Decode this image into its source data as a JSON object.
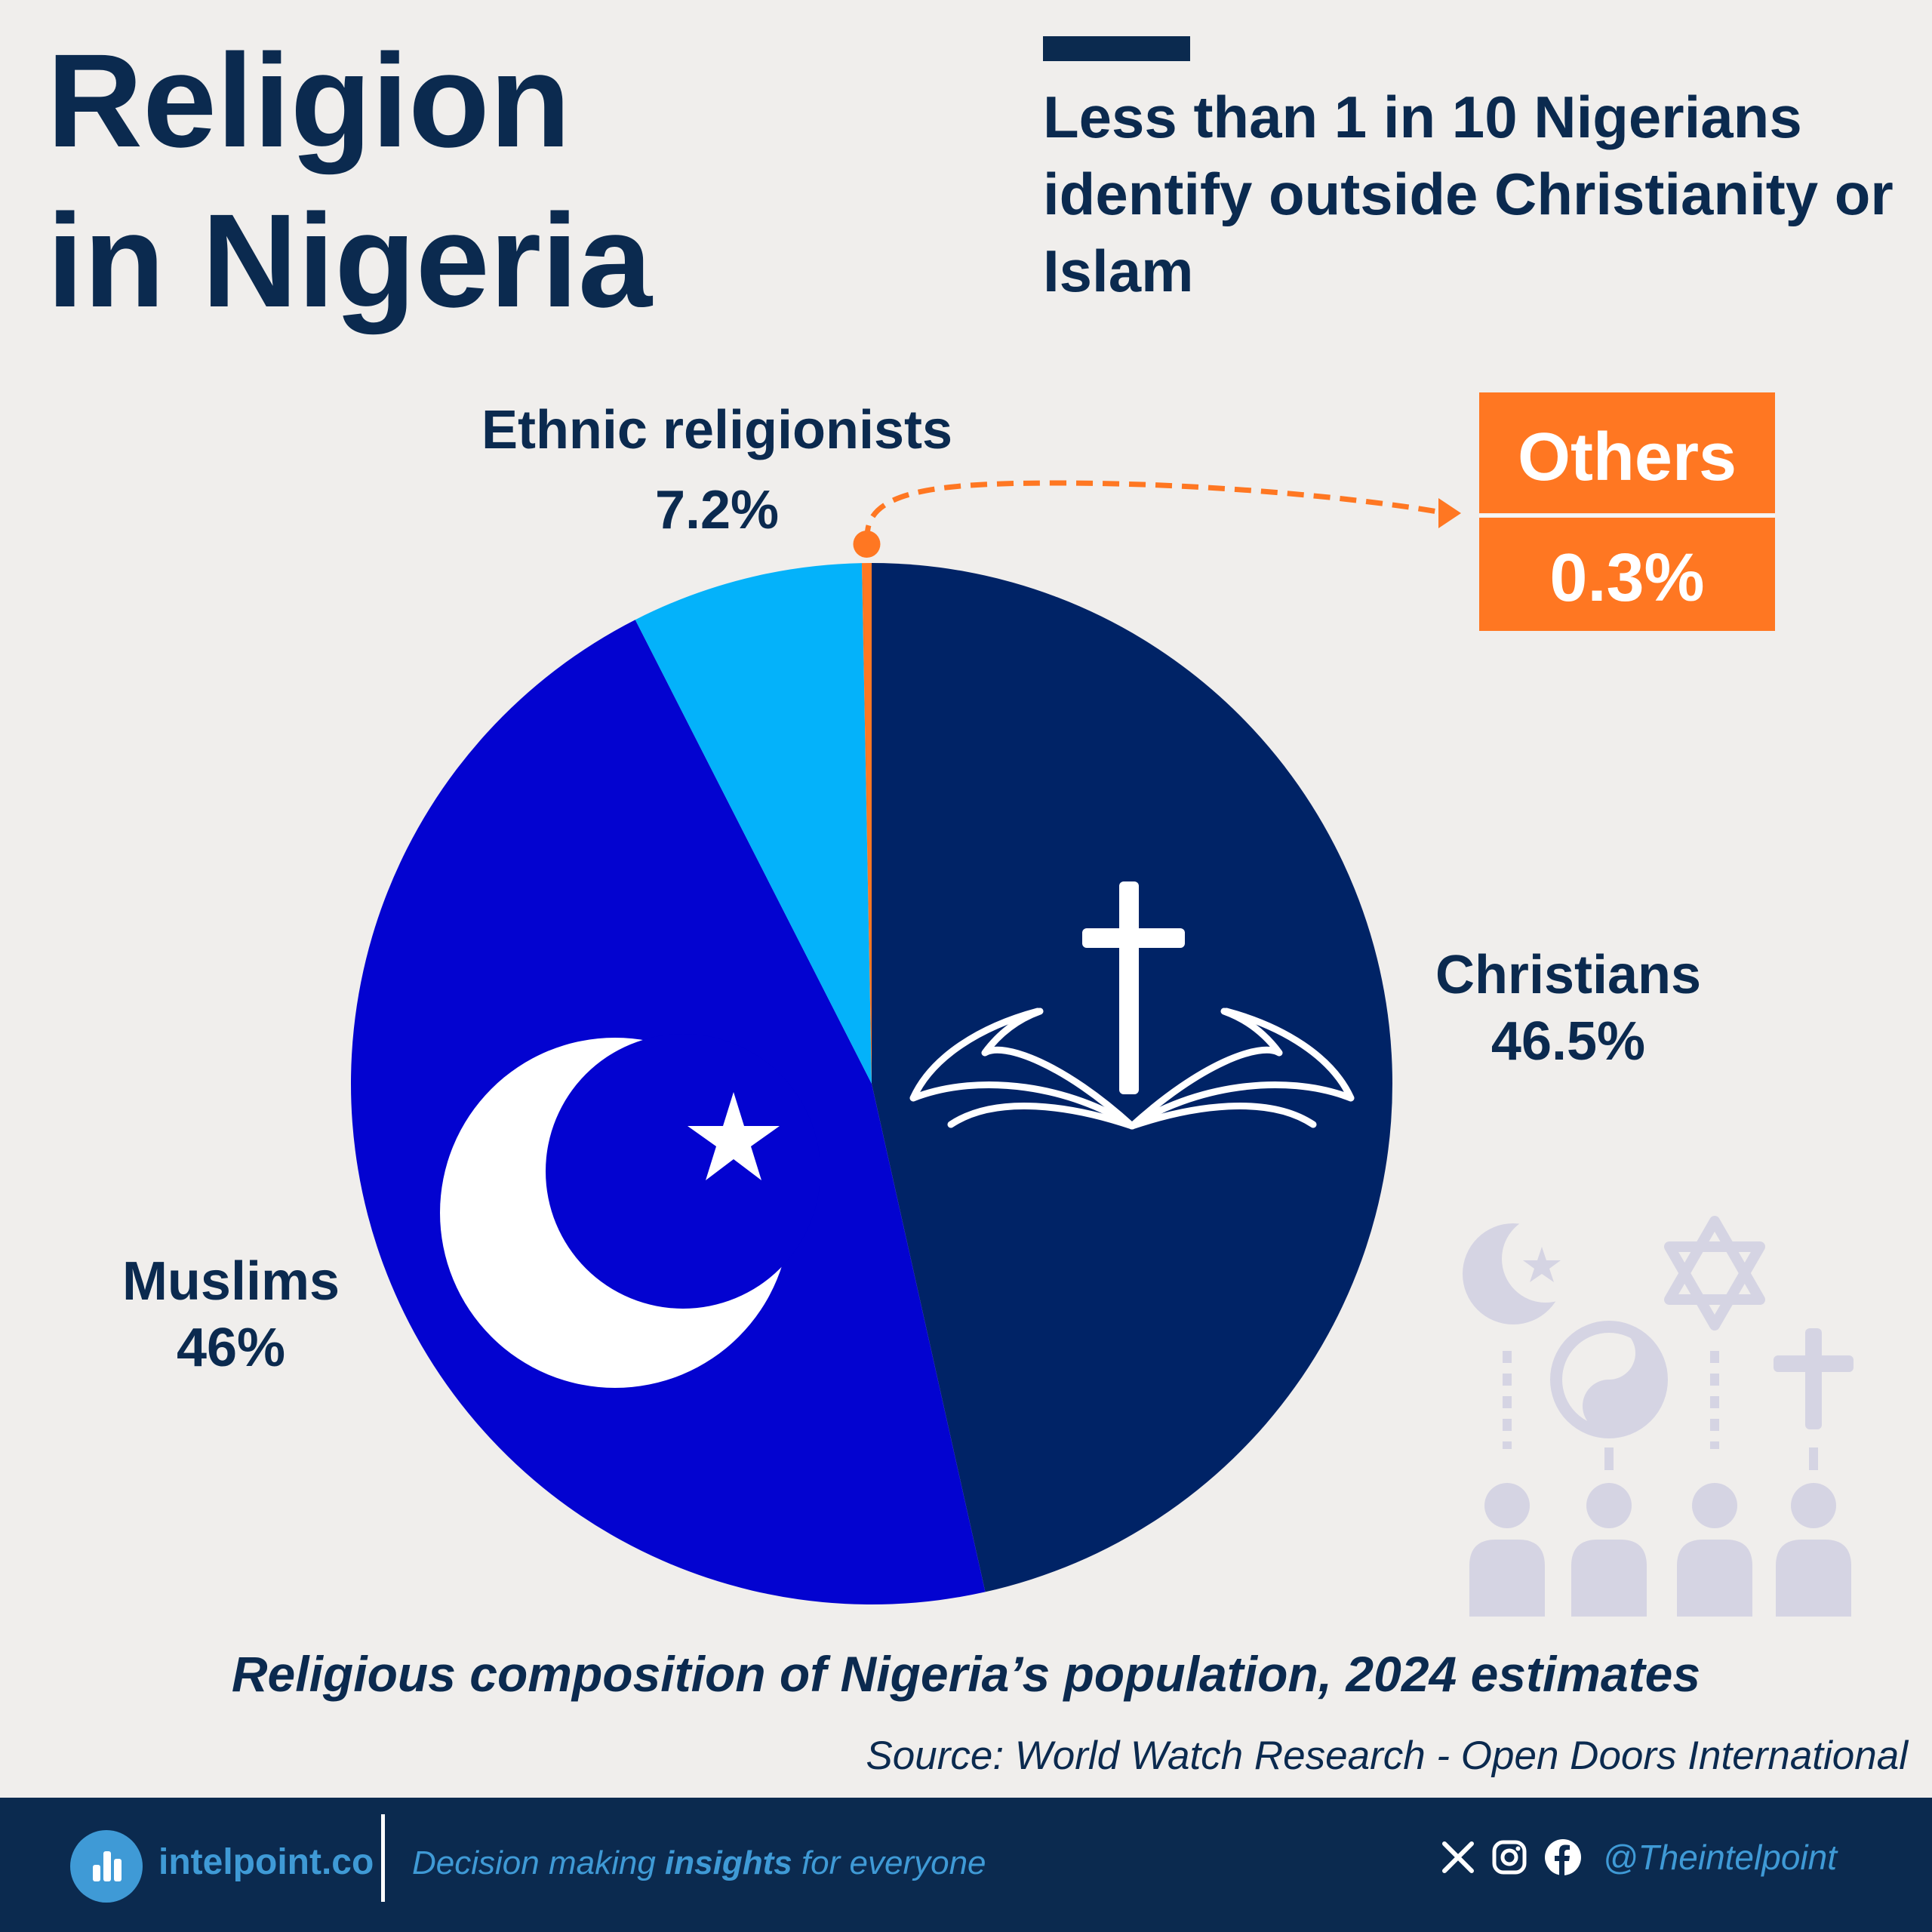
{
  "title_line1": "Religion",
  "title_line2": "in Nigeria",
  "subtitle": "Less than 1 in 10 Nigerians identify outside Christianity or Islam",
  "caption": "Religious composition of Nigeria’s population, 2024 estimates",
  "source": "Source: World Watch Research - Open Doors International",
  "colors": {
    "navy": "#0b2a4f",
    "christians": "#002366",
    "muslims": "#0303d0",
    "ethnic": "#04b2fa",
    "others": "#ff7722",
    "background": "#f0eeec",
    "watermark": "#d5d4e3"
  },
  "chart_data": {
    "type": "pie",
    "start": "12 o'clock",
    "direction": "clockwise",
    "slices": [
      {
        "name": "Christians",
        "label": "46.5%",
        "value": 46.5,
        "color": "#002366",
        "icon": "bible-cross-icon"
      },
      {
        "name": "Muslims",
        "label": "46%",
        "value": 46,
        "color": "#0303d0",
        "icon": "crescent-star-icon"
      },
      {
        "name": "Ethnic religionists",
        "label": "7.2%",
        "value": 7.2,
        "color": "#04b2fa"
      },
      {
        "name": "Others",
        "label": "0.3%",
        "value": 0.3,
        "color": "#ff7722",
        "callout": true
      }
    ]
  },
  "footer": {
    "brand": "intelpoint.co",
    "tagline_before": "Decision making ",
    "tagline_bold": "insights",
    "tagline_after": " for everyone",
    "handle": "@Theintelpoint",
    "icons": [
      "x-icon",
      "instagram-icon",
      "facebook-icon"
    ]
  }
}
